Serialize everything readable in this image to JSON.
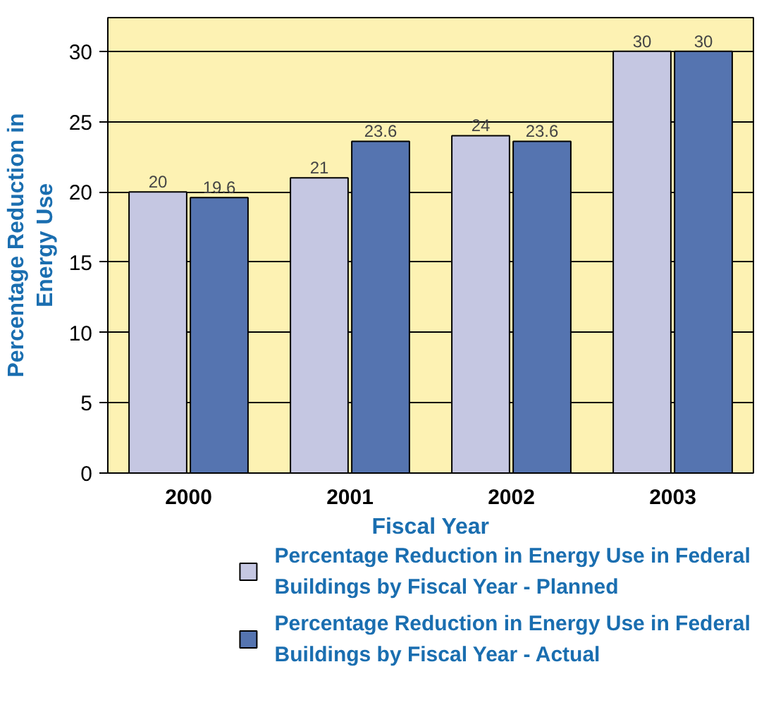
{
  "chart_data": {
    "type": "bar",
    "xlabel": "Fiscal Year",
    "ylabel": "Percentage Reduction in Energy Use",
    "categories": [
      "2000",
      "2001",
      "2002",
      "2003"
    ],
    "series": [
      {
        "name": "Percentage Reduction in Energy Use in Federal Buildings by Fiscal Year - Planned",
        "color": "#c5c7e2",
        "values": [
          20,
          21,
          24,
          30
        ]
      },
      {
        "name": "Percentage Reduction in Energy Use in Federal Buildings by Fiscal Year - Actual",
        "color": "#5574b0",
        "values": [
          19.6,
          23.6,
          23.6,
          30
        ]
      }
    ],
    "ylim": [
      0,
      32.4
    ],
    "yticks": [
      0,
      5,
      10,
      15,
      20,
      25,
      30
    ],
    "grid": "y",
    "data_labels": true,
    "legend": "bottom"
  }
}
